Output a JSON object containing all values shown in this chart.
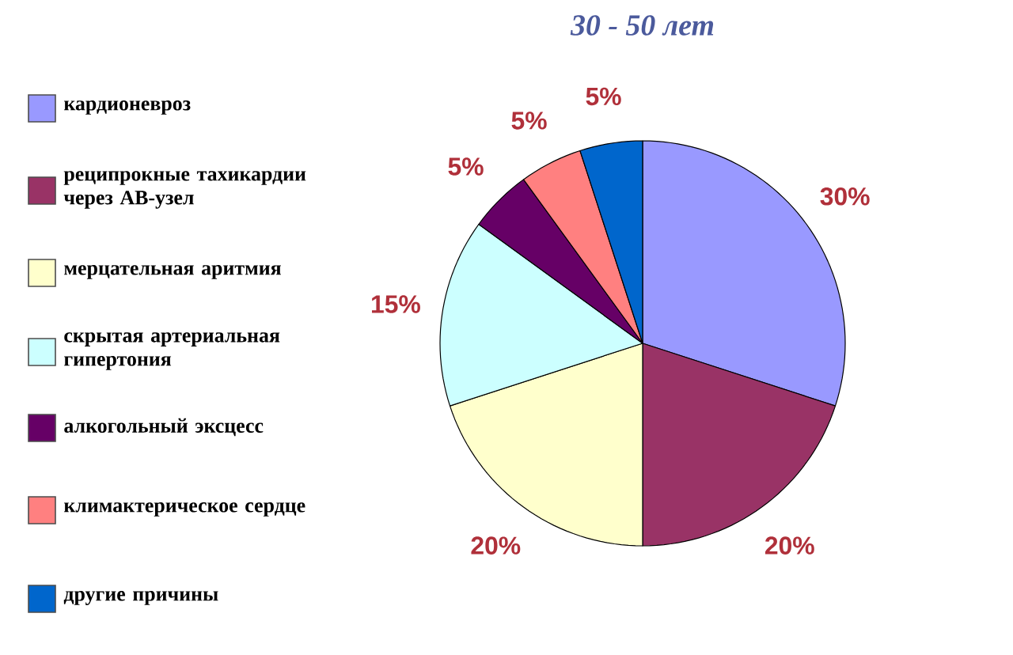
{
  "chart_data": {
    "type": "pie",
    "title": "30 - 50 лет",
    "categories": [
      "кардионевроз",
      "реципрокные тахикардии через АВ-узел",
      "мерцательная аритмия",
      "скрытая артериальная гипертония",
      "алкогольный эксцесс",
      "климактерическое сердце",
      "другие причины"
    ],
    "values": [
      30,
      20,
      20,
      15,
      5,
      5,
      5
    ],
    "colors": [
      "#9999ff",
      "#993366",
      "#ffffcc",
      "#ccffff",
      "#660066",
      "#ff8080",
      "#0066cc"
    ],
    "value_labels": [
      "30%",
      "20%",
      "20%",
      "15%",
      "5%",
      "5%",
      "5%"
    ],
    "legend": "left"
  }
}
